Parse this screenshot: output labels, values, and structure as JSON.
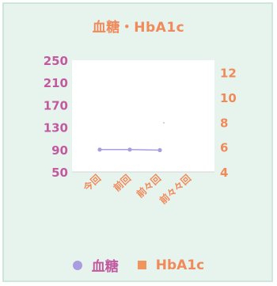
{
  "chart_data": {
    "type": "line",
    "title": "血糖・HbA1c",
    "categories": [
      "今回",
      "前回",
      "前々回",
      "前々々回"
    ],
    "series": [
      {
        "name": "血糖",
        "axis": "left",
        "values": [
          90,
          90,
          89,
          null
        ],
        "color": "#a99de0"
      },
      {
        "name": "HbA1c",
        "axis": "right",
        "values": [
          null,
          null,
          null,
          null
        ],
        "color": "#f0955e"
      }
    ],
    "y_left": {
      "range": [
        50,
        250
      ],
      "ticks": [
        "50",
        "90",
        "130",
        "170",
        "210",
        "250"
      ]
    },
    "y_right": {
      "range": [
        4,
        13
      ],
      "ticks": [
        "4",
        "6",
        "8",
        "10",
        "12"
      ]
    },
    "grid": false,
    "legend_position": "bottom",
    "colors": {
      "panel_bg": "#e7f4ee",
      "plot_bg": "#ffffff",
      "left_axis_text": "#c25aa0",
      "right_axis_text": "#f08a5a",
      "category_text": "#f08a5a"
    }
  }
}
